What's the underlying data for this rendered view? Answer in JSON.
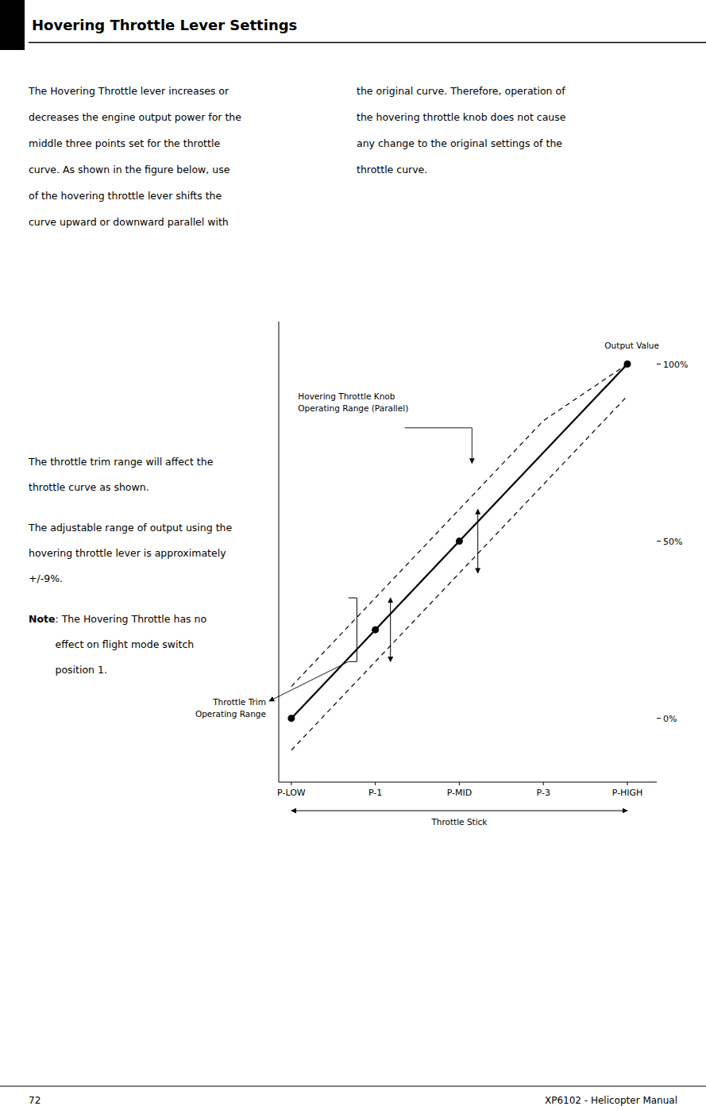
{
  "page": {
    "title": "Hovering Throttle Lever Settings",
    "page_number": "72",
    "manual_name": "XP6102 - Helicopter Manual",
    "left_column": [
      "The Hovering Throttle lever increases or",
      "decreases the engine output power for the",
      "middle three points set for the throttle",
      "curve. As shown in the figure below, use",
      "of the hovering throttle lever shifts the",
      "curve upward or downward parallel with"
    ],
    "right_column": [
      "the original curve. Therefore, operation of",
      "the hovering throttle knob does not cause",
      "any change to the original settings of the",
      "throttle curve."
    ],
    "paragraphs": [
      [
        "The throttle trim range will affect the",
        "throttle curve as shown."
      ],
      [
        "The adjustable range of output using the",
        "hovering throttle lever is approximately",
        "+/-9%."
      ]
    ],
    "note_label": "Note",
    "note_lines": [
      ": The Hovering Throttle has no",
      "effect on flight mode switch",
      "position 1."
    ]
  },
  "chart_data": {
    "type": "line",
    "x_label": "Throttle Stick",
    "y_label": "Output Value",
    "categories": [
      "P-LOW",
      "P-1",
      "P-MID",
      "P-3",
      "P-HIGH"
    ],
    "series": [
      {
        "values": [
          0,
          25,
          50,
          75,
          100
        ],
        "color": "#000000",
        "line_style": "solid"
      },
      {
        "values": [
          9,
          34,
          59,
          84,
          100
        ],
        "color": "#000000",
        "line_style": "dashed"
      },
      {
        "values": [
          -9,
          16,
          41,
          66,
          91
        ],
        "color": "#000000",
        "line_style": "dashed"
      },
      {
        "type": "scatter",
        "marker": "circle",
        "color": "#000000",
        "values": [
          0,
          25,
          50,
          null,
          100
        ]
      }
    ],
    "ylim": [
      -18,
      112
    ],
    "yticks": [
      {
        "value": 0,
        "label": "0%"
      },
      {
        "value": 50,
        "label": "50%"
      },
      {
        "value": 100,
        "label": "100%"
      }
    ],
    "grid": false,
    "annotations": [
      {
        "text": "Hovering Throttle Knob\nOperating Range (Parallel)"
      },
      {
        "text": "Throttle Trim\nOperating Range"
      }
    ]
  }
}
